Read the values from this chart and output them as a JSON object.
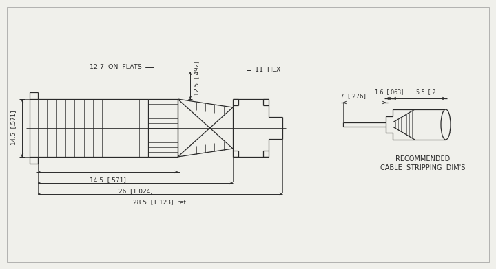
{
  "bg_color": "#f0f0eb",
  "line_color": "#2a2a2a",
  "annotations": {
    "on_flats": "12.7  ON  FLATS",
    "hex": "11  HEX",
    "dim_125": "12.5  [.492]",
    "dim_145_v": "14.5  [.571]",
    "dim_145_h": "14.5  [.571]",
    "dim_26": "26  [1.024]",
    "dim_285": "28.5  [1.123]  ref.",
    "dim_7": "7  [.276]",
    "dim_16": "1.6  [.063]",
    "dim_55": "5.5  [.2",
    "cable_label1": "RECOMMENDED",
    "cable_label2": "CABLE  STRIPPING  DIM'S"
  }
}
